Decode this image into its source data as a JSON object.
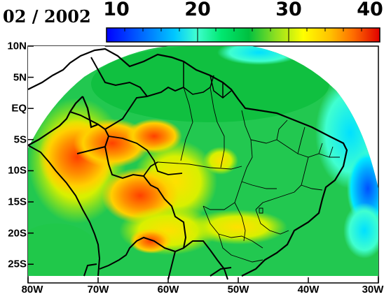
{
  "map": {
    "date_label": "02 / 2002",
    "colorbar": {
      "labels": [
        "10",
        "20",
        "30",
        "40"
      ],
      "values": [
        10,
        20,
        30,
        40
      ],
      "range": [
        10,
        40
      ],
      "colors": [
        "#0000ff",
        "#0050ff",
        "#00a0ff",
        "#00e8ff",
        "#40ffc0",
        "#00e060",
        "#00c040",
        "#a0e020",
        "#ffff00",
        "#ffc000",
        "#ff8000",
        "#ff3000",
        "#e00000"
      ]
    },
    "lat_ticks": [
      "10N",
      "5N",
      "EQ",
      "5S",
      "10S",
      "15S",
      "20S",
      "25S"
    ],
    "lat_values": [
      10,
      5,
      0,
      -5,
      -10,
      -15,
      -20,
      -25
    ],
    "lon_ticks": [
      "80W",
      "70W",
      "60W",
      "50W",
      "40W",
      "30W"
    ],
    "lon_values": [
      -80,
      -70,
      -60,
      -50,
      -40,
      -30
    ],
    "extent": {
      "lon": [
        -80,
        -30
      ],
      "lat": [
        -28,
        10
      ]
    }
  }
}
